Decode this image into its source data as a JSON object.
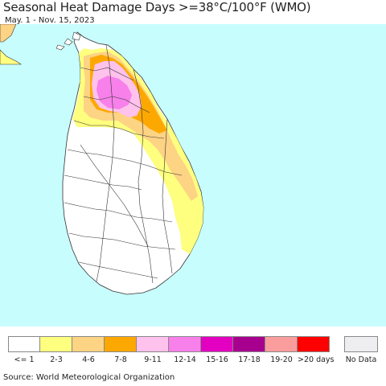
{
  "header": {
    "title": "Seasonal Heat Damage Days >=38°C/100°F (WMO)",
    "date_range": "May. 1 - Nov. 15, 2023"
  },
  "map": {
    "ocean_color": "#c8fdfd",
    "land_color": "#ffffff",
    "boundary_color": "#333333",
    "region": "Sri Lanka"
  },
  "legend": {
    "bins": [
      {
        "label": "<= 1",
        "color": "#ffffff"
      },
      {
        "label": "2-3",
        "color": "#fefe7f"
      },
      {
        "label": "4-6",
        "color": "#fdd384"
      },
      {
        "label": "7-8",
        "color": "#fda800"
      },
      {
        "label": "9-11",
        "color": "#fec2ec"
      },
      {
        "label": "12-14",
        "color": "#f780ea"
      },
      {
        "label": "15-16",
        "color": "#e300c0"
      },
      {
        "label": "17-18",
        "color": "#a8008e"
      },
      {
        "label": "19-20",
        "color": "#fc9d9d"
      },
      {
        "label": ">20 days",
        "color": "#fe0000"
      }
    ],
    "no_data": {
      "label": "No Data",
      "color": "#eeeef0"
    }
  },
  "footer": {
    "source": "Source: World Meteorological Organization"
  }
}
